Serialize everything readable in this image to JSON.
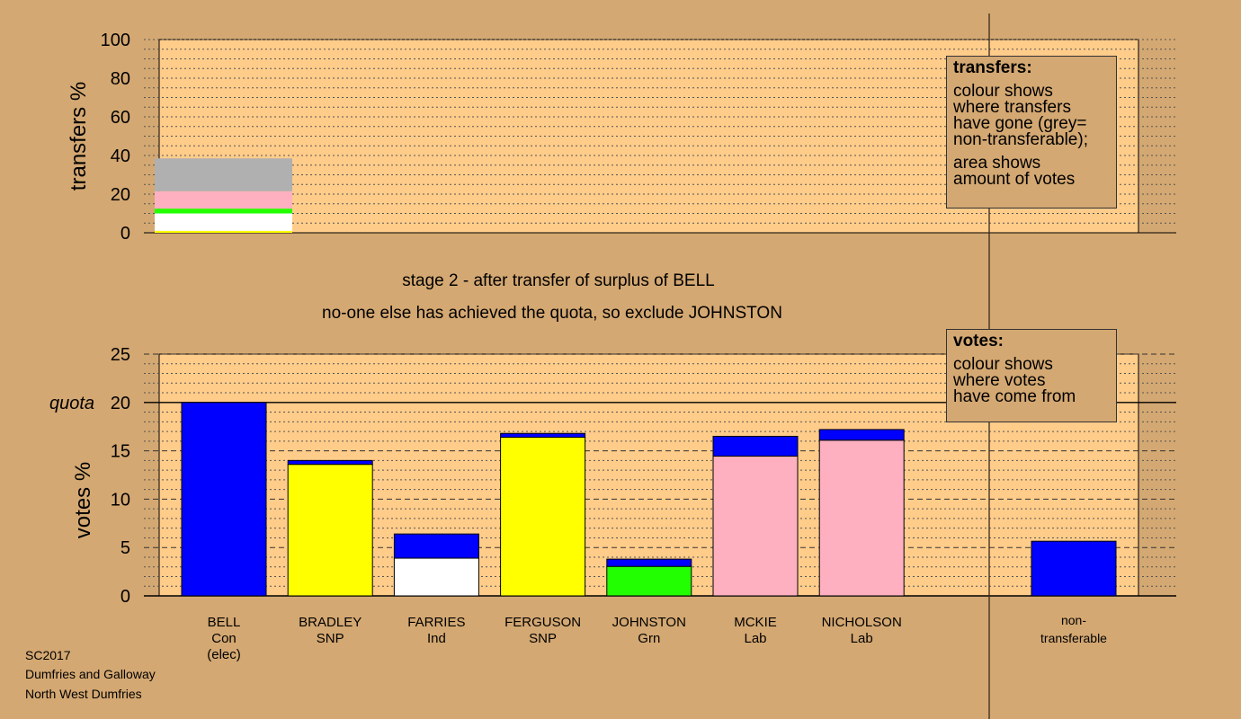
{
  "colors": {
    "background": "#d4a872",
    "plot_fill": "#ffcc8a",
    "con": "#0000ff",
    "snp": "#ffff00",
    "ind": "#ffffff",
    "grn": "#22ff00",
    "lab": "#ffb0c0",
    "non_transferable": "#b0b0b0"
  },
  "captions": {
    "stage": "stage 2 - after transfer of surplus of BELL",
    "action": "no-one else has achieved the quota, so exclude JOHNSTON"
  },
  "legend_transfers": {
    "title": "transfers:",
    "lines_a": [
      "colour shows",
      "where transfers",
      "have gone (grey=",
      "non-transferable);"
    ],
    "lines_b": [
      "area shows",
      "amount of votes"
    ]
  },
  "legend_votes": {
    "title": "votes:",
    "lines": [
      "colour shows",
      "where votes",
      "have come from"
    ]
  },
  "footer": [
    "SC2017",
    "Dumfries and Galloway",
    "North West Dumfries"
  ],
  "chart_data": [
    {
      "type": "bar",
      "stacked": true,
      "ylabel": "transfers %",
      "ylim": [
        0,
        100
      ],
      "yticks": [
        0,
        20,
        40,
        60,
        80,
        100
      ],
      "grid": "dotted",
      "legend_placement": "top-right",
      "bar_position": "BELL",
      "segments": [
        {
          "party": "snp",
          "value": 1
        },
        {
          "party": "ind",
          "value": 9
        },
        {
          "party": "grn",
          "value": 2.5
        },
        {
          "party": "lab",
          "value": 9
        },
        {
          "party": "non_transferable",
          "value": 17
        }
      ]
    },
    {
      "type": "bar",
      "stacked": true,
      "ylabel": "votes %",
      "ylim": [
        0,
        25
      ],
      "yticks": [
        0,
        5,
        10,
        15,
        20,
        25
      ],
      "quota": 20,
      "quota_label": "quota",
      "grid": "dashed",
      "legend_placement": "top-right",
      "candidates": [
        {
          "name": "BELL",
          "party": "Con",
          "note": "(elec)",
          "segments": [
            {
              "party": "con",
              "value": 20
            }
          ]
        },
        {
          "name": "BRADLEY",
          "party": "SNP",
          "note": "",
          "segments": [
            {
              "party": "snp",
              "value": 13.6
            },
            {
              "party": "con",
              "value": 0.4
            }
          ]
        },
        {
          "name": "FARRIES",
          "party": "Ind",
          "note": "",
          "segments": [
            {
              "party": "ind",
              "value": 3.9
            },
            {
              "party": "con",
              "value": 2.5
            }
          ]
        },
        {
          "name": "FERGUSON",
          "party": "SNP",
          "note": "",
          "segments": [
            {
              "party": "snp",
              "value": 16.4
            },
            {
              "party": "con",
              "value": 0.4
            }
          ]
        },
        {
          "name": "JOHNSTON",
          "party": "Grn",
          "note": "",
          "segments": [
            {
              "party": "grn",
              "value": 3.05
            },
            {
              "party": "con",
              "value": 0.75
            }
          ]
        },
        {
          "name": "MCKIE",
          "party": "Lab",
          "note": "",
          "segments": [
            {
              "party": "lab",
              "value": 14.45
            },
            {
              "party": "con",
              "value": 2.05
            }
          ]
        },
        {
          "name": "NICHOLSON",
          "party": "Lab",
          "note": "",
          "segments": [
            {
              "party": "lab",
              "value": 16.1
            },
            {
              "party": "con",
              "value": 1.1
            }
          ]
        }
      ],
      "non_transferable": {
        "name": "non-",
        "name2": "transferable",
        "segments": [
          {
            "party": "con",
            "value": 5.65
          }
        ]
      }
    }
  ]
}
